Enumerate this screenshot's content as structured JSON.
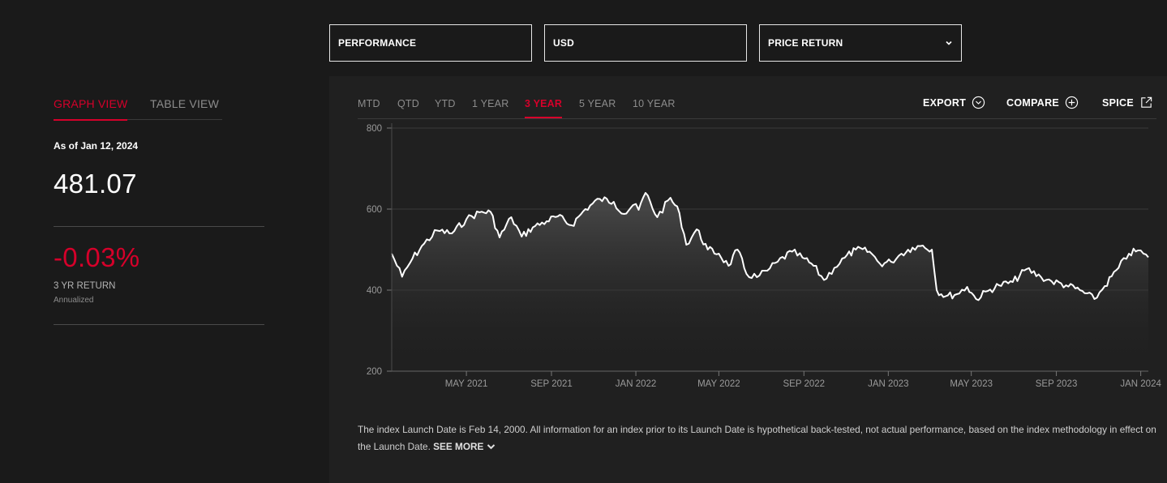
{
  "selectors": {
    "type": "PERFORMANCE",
    "currency": "USD",
    "return_type": "PRICE RETURN"
  },
  "view_tabs": {
    "graph": "GRAPH VIEW",
    "table": "TABLE VIEW"
  },
  "summary": {
    "as_of": "As of Jan 12, 2024",
    "level": "481.07",
    "return": "-0.03%",
    "return_label": "3 YR RETURN",
    "return_sub": "Annualized"
  },
  "periods": [
    "MTD",
    "QTD",
    "YTD",
    "1 YEAR",
    "3 YEAR",
    "5 YEAR",
    "10 YEAR"
  ],
  "active_period": "3 YEAR",
  "actions": {
    "export": "EXPORT",
    "compare": "COMPARE",
    "spice": "SPICE"
  },
  "disclaimer": {
    "text": "The index Launch Date is Feb 14, 2000. All information for an index prior to its Launch Date is hypothetical back-tested, not actual performance, based on the index methodology in effect on the Launch Date.",
    "see_more": "SEE MORE"
  },
  "colors": {
    "accent": "#d6002a",
    "background": "#1a1a1a",
    "panel": "#202020",
    "line": "#ffffff"
  },
  "chart_data": {
    "type": "area",
    "ylim": [
      200,
      800
    ],
    "yticks": [
      200,
      400,
      600,
      800
    ],
    "xlim": [
      "2021-01-13",
      "2024-01-12"
    ],
    "xticks": [
      {
        "date": "2021-05-01",
        "label": "MAY 2021"
      },
      {
        "date": "2021-09-01",
        "label": "SEP 2021"
      },
      {
        "date": "2022-01-01",
        "label": "JAN 2022"
      },
      {
        "date": "2022-05-01",
        "label": "MAY 2022"
      },
      {
        "date": "2022-09-01",
        "label": "SEP 2022"
      },
      {
        "date": "2023-01-01",
        "label": "JAN 2023"
      },
      {
        "date": "2023-05-01",
        "label": "MAY 2023"
      },
      {
        "date": "2023-09-01",
        "label": "SEP 2023"
      },
      {
        "date": "2024-01-01",
        "label": "JAN 2024"
      }
    ],
    "series": [
      {
        "points": [
          [
            "2021-01-13",
            490
          ],
          [
            "2021-01-28",
            433
          ],
          [
            "2021-02-12",
            478
          ],
          [
            "2021-03-01",
            515
          ],
          [
            "2021-03-20",
            547
          ],
          [
            "2021-04-10",
            540
          ],
          [
            "2021-05-01",
            575
          ],
          [
            "2021-05-20",
            592
          ],
          [
            "2021-06-05",
            593
          ],
          [
            "2021-06-18",
            530
          ],
          [
            "2021-07-05",
            580
          ],
          [
            "2021-07-20",
            532
          ],
          [
            "2021-08-05",
            555
          ],
          [
            "2021-08-25",
            570
          ],
          [
            "2021-09-10",
            582
          ],
          [
            "2021-09-30",
            560
          ],
          [
            "2021-10-20",
            600
          ],
          [
            "2021-11-10",
            625
          ],
          [
            "2021-11-30",
            618
          ],
          [
            "2021-12-15",
            588
          ],
          [
            "2021-12-28",
            610
          ],
          [
            "2022-01-05",
            598
          ],
          [
            "2022-01-15",
            640
          ],
          [
            "2022-02-01",
            580
          ],
          [
            "2022-02-20",
            628
          ],
          [
            "2022-03-05",
            590
          ],
          [
            "2022-03-15",
            512
          ],
          [
            "2022-03-30",
            550
          ],
          [
            "2022-04-15",
            500
          ],
          [
            "2022-05-01",
            490
          ],
          [
            "2022-05-15",
            460
          ],
          [
            "2022-05-28",
            500
          ],
          [
            "2022-06-10",
            440
          ],
          [
            "2022-06-25",
            432
          ],
          [
            "2022-07-10",
            448
          ],
          [
            "2022-07-25",
            470
          ],
          [
            "2022-08-15",
            495
          ],
          [
            "2022-08-30",
            480
          ],
          [
            "2022-09-15",
            460
          ],
          [
            "2022-09-30",
            425
          ],
          [
            "2022-10-15",
            455
          ],
          [
            "2022-10-30",
            480
          ],
          [
            "2022-11-15",
            500
          ],
          [
            "2022-12-05",
            495
          ],
          [
            "2022-12-20",
            465
          ],
          [
            "2023-01-05",
            470
          ],
          [
            "2023-01-20",
            490
          ],
          [
            "2023-02-05",
            505
          ],
          [
            "2023-02-20",
            510
          ],
          [
            "2023-03-05",
            500
          ],
          [
            "2023-03-12",
            400
          ],
          [
            "2023-03-25",
            385
          ],
          [
            "2023-04-10",
            390
          ],
          [
            "2023-04-25",
            408
          ],
          [
            "2023-05-08",
            378
          ],
          [
            "2023-05-25",
            398
          ],
          [
            "2023-06-10",
            412
          ],
          [
            "2023-06-30",
            420
          ],
          [
            "2023-07-20",
            452
          ],
          [
            "2023-08-10",
            432
          ],
          [
            "2023-08-25",
            422
          ],
          [
            "2023-09-15",
            412
          ],
          [
            "2023-10-05",
            400
          ],
          [
            "2023-10-26",
            378
          ],
          [
            "2023-11-10",
            410
          ],
          [
            "2023-11-30",
            455
          ],
          [
            "2023-12-15",
            490
          ],
          [
            "2023-12-28",
            498
          ],
          [
            "2024-01-05",
            490
          ],
          [
            "2024-01-12",
            481
          ]
        ]
      }
    ]
  }
}
